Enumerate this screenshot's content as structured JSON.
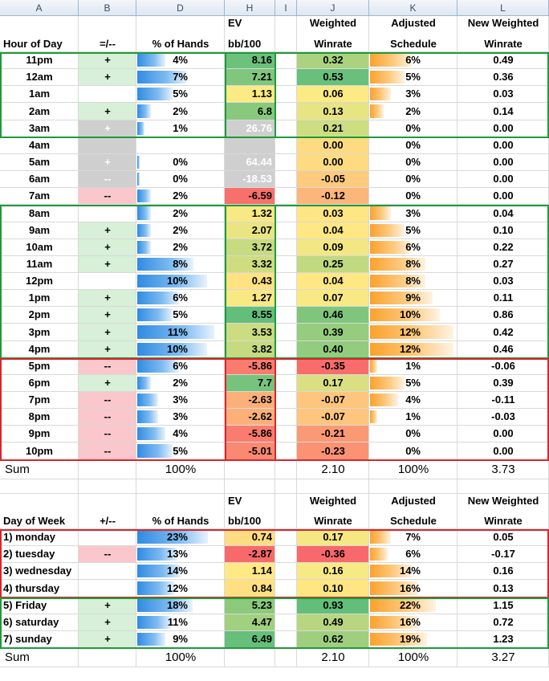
{
  "colors": {
    "plus_fill": "#d7f0d7",
    "minus_fill": "#f9c7cc",
    "gray_fill": "#cfcfcf",
    "bar_blue": "#2f8be2",
    "bar_orange": "#fbaa3c",
    "green_frame": "#1e9a3a",
    "red_frame": "#d9262b"
  },
  "column_letters": [
    "A",
    "B",
    "D",
    "H",
    "I",
    "J",
    "K",
    "L"
  ],
  "hour_header": {
    "a": "Hour of Day",
    "b": "=/--",
    "d": "% of Hands",
    "h1": "EV",
    "h2": "bb/100",
    "j1": "Weighted",
    "j2": "Winrate",
    "k1": "Adjusted",
    "k2": "Schedule",
    "l1": "New Weighted",
    "l2": "Winrate"
  },
  "hour_rows": [
    {
      "a": "11pm",
      "b": "+",
      "bfill": "plus",
      "d": "4%",
      "dv": 4,
      "h": "8.16",
      "hv": 8.16,
      "hgray": false,
      "j": "0.32",
      "jv": 0.32,
      "k": "6%",
      "kv": 6,
      "l": "0.49"
    },
    {
      "a": "12am",
      "b": "+",
      "bfill": "plus",
      "d": "7%",
      "dv": 7,
      "h": "7.21",
      "hv": 7.21,
      "hgray": false,
      "j": "0.53",
      "jv": 0.53,
      "k": "5%",
      "kv": 5,
      "l": "0.36"
    },
    {
      "a": "1am",
      "b": "",
      "bfill": "none",
      "d": "5%",
      "dv": 5,
      "h": "1.13",
      "hv": 1.13,
      "hgray": false,
      "j": "0.06",
      "jv": 0.06,
      "k": "3%",
      "kv": 3,
      "l": "0.03"
    },
    {
      "a": "2am",
      "b": "+",
      "bfill": "plus",
      "d": "2%",
      "dv": 2,
      "h": "6.8",
      "hv": 6.8,
      "hgray": false,
      "j": "0.13",
      "jv": 0.13,
      "k": "2%",
      "kv": 2,
      "l": "0.14"
    },
    {
      "a": "3am",
      "b": "+",
      "bfill": "gray",
      "d": "1%",
      "dv": 1,
      "h": "26.76",
      "hv": 26.76,
      "hgray": true,
      "j": "0.21",
      "jv": 0.21,
      "k": "0%",
      "kv": 0,
      "l": "0.00"
    },
    {
      "a": "4am",
      "b": "",
      "bfill": "gray",
      "d": "",
      "dv": 0,
      "h": "",
      "hv": 0,
      "hgray": true,
      "j": "0.00",
      "jv": 0,
      "k": "0%",
      "kv": 0,
      "l": "0.00"
    },
    {
      "a": "5am",
      "b": "+",
      "bfill": "gray",
      "d": "0%",
      "dv": 0.4,
      "h": "64.44",
      "hv": 64.44,
      "hgray": true,
      "j": "0.00",
      "jv": 0,
      "k": "0%",
      "kv": 0,
      "l": "0.00"
    },
    {
      "a": "6am",
      "b": "--",
      "bfill": "gray",
      "d": "0%",
      "dv": 0.4,
      "h": "-18.53",
      "hv": -18.53,
      "hgray": true,
      "j": "-0.05",
      "jv": -0.05,
      "k": "0%",
      "kv": 0,
      "l": "0.00"
    },
    {
      "a": "7am",
      "b": "--",
      "bfill": "minus",
      "d": "2%",
      "dv": 2,
      "h": "-6.59",
      "hv": -6.59,
      "hgray": false,
      "j": "-0.12",
      "jv": -0.12,
      "k": "0%",
      "kv": 0,
      "l": "0.00"
    },
    {
      "a": "8am",
      "b": "",
      "bfill": "none",
      "d": "2%",
      "dv": 2,
      "h": "1.32",
      "hv": 1.32,
      "hgray": false,
      "j": "0.03",
      "jv": 0.03,
      "k": "3%",
      "kv": 3,
      "l": "0.04"
    },
    {
      "a": "9am",
      "b": "+",
      "bfill": "plus",
      "d": "2%",
      "dv": 2,
      "h": "2.07",
      "hv": 2.07,
      "hgray": false,
      "j": "0.04",
      "jv": 0.04,
      "k": "5%",
      "kv": 5,
      "l": "0.10"
    },
    {
      "a": "10am",
      "b": "+",
      "bfill": "plus",
      "d": "2%",
      "dv": 2,
      "h": "3.72",
      "hv": 3.72,
      "hgray": false,
      "j": "0.09",
      "jv": 0.09,
      "k": "6%",
      "kv": 6,
      "l": "0.22"
    },
    {
      "a": "11am",
      "b": "+",
      "bfill": "plus",
      "d": "8%",
      "dv": 8,
      "h": "3.32",
      "hv": 3.32,
      "hgray": false,
      "j": "0.25",
      "jv": 0.25,
      "k": "8%",
      "kv": 8,
      "l": "0.27"
    },
    {
      "a": "12pm",
      "b": "",
      "bfill": "none",
      "d": "10%",
      "dv": 10,
      "h": "0.43",
      "hv": 0.43,
      "hgray": false,
      "j": "0.04",
      "jv": 0.04,
      "k": "8%",
      "kv": 8,
      "l": "0.03"
    },
    {
      "a": "1pm",
      "b": "+",
      "bfill": "plus",
      "d": "6%",
      "dv": 6,
      "h": "1.27",
      "hv": 1.27,
      "hgray": false,
      "j": "0.07",
      "jv": 0.07,
      "k": "9%",
      "kv": 9,
      "l": "0.11"
    },
    {
      "a": "2pm",
      "b": "+",
      "bfill": "plus",
      "d": "5%",
      "dv": 5,
      "h": "8.55",
      "hv": 8.55,
      "hgray": false,
      "j": "0.46",
      "jv": 0.46,
      "k": "10%",
      "kv": 10,
      "l": "0.86"
    },
    {
      "a": "3pm",
      "b": "+",
      "bfill": "plus",
      "d": "11%",
      "dv": 11,
      "h": "3.53",
      "hv": 3.53,
      "hgray": false,
      "j": "0.39",
      "jv": 0.39,
      "k": "12%",
      "kv": 12,
      "l": "0.42"
    },
    {
      "a": "4pm",
      "b": "+",
      "bfill": "plus",
      "d": "10%",
      "dv": 10,
      "h": "3.82",
      "hv": 3.82,
      "hgray": false,
      "j": "0.40",
      "jv": 0.4,
      "k": "12%",
      "kv": 12,
      "l": "0.46"
    },
    {
      "a": "5pm",
      "b": "--",
      "bfill": "minus",
      "d": "6%",
      "dv": 6,
      "h": "-5.86",
      "hv": -5.86,
      "hgray": false,
      "j": "-0.35",
      "jv": -0.35,
      "k": "1%",
      "kv": 1,
      "l": "-0.06"
    },
    {
      "a": "6pm",
      "b": "+",
      "bfill": "plus",
      "d": "2%",
      "dv": 2,
      "h": "7.7",
      "hv": 7.7,
      "hgray": false,
      "j": "0.17",
      "jv": 0.17,
      "k": "5%",
      "kv": 5,
      "l": "0.39"
    },
    {
      "a": "7pm",
      "b": "--",
      "bfill": "minus",
      "d": "3%",
      "dv": 3,
      "h": "-2.63",
      "hv": -2.63,
      "hgray": false,
      "j": "-0.07",
      "jv": -0.07,
      "k": "4%",
      "kv": 4,
      "l": "-0.11"
    },
    {
      "a": "8pm",
      "b": "--",
      "bfill": "minus",
      "d": "3%",
      "dv": 3,
      "h": "-2.62",
      "hv": -2.62,
      "hgray": false,
      "j": "-0.07",
      "jv": -0.07,
      "k": "1%",
      "kv": 1,
      "l": "-0.03"
    },
    {
      "a": "9pm",
      "b": "--",
      "bfill": "minus",
      "d": "4%",
      "dv": 4,
      "h": "-5.86",
      "hv": -5.86,
      "hgray": false,
      "j": "-0.21",
      "jv": -0.21,
      "k": "0%",
      "kv": 0,
      "l": "0.00"
    },
    {
      "a": "10pm",
      "b": "--",
      "bfill": "minus",
      "d": "5%",
      "dv": 5,
      "h": "-5.01",
      "hv": -5.01,
      "hgray": false,
      "j": "-0.23",
      "jv": -0.23,
      "k": "0%",
      "kv": 0,
      "l": "0.00"
    }
  ],
  "hour_sum": {
    "a": "Sum",
    "d": "100%",
    "j": "2.10",
    "k": "100%",
    "l": "3.73"
  },
  "day_header": {
    "a": "Day of Week",
    "b": "+/--",
    "d": "% of Hands",
    "h1": "EV",
    "h2": "bb/100",
    "j1": "Weighted",
    "j2": "Winrate",
    "k1": "Adjusted",
    "k2": "Schedule",
    "l1": "New Weighted",
    "l2": "Winrate"
  },
  "day_rows": [
    {
      "a": "1) monday",
      "b": "",
      "bfill": "none",
      "d": "23%",
      "dv": 23,
      "h": "0.74",
      "hv": 0.74,
      "j": "0.17",
      "jv": 0.17,
      "k": "7%",
      "kv": 7,
      "l": "0.05"
    },
    {
      "a": "2) tuesday",
      "b": "--",
      "bfill": "minus",
      "d": "13%",
      "dv": 13,
      "h": "-2.87",
      "hv": -2.87,
      "j": "-0.36",
      "jv": -0.36,
      "k": "6%",
      "kv": 6,
      "l": "-0.17"
    },
    {
      "a": "3) wednesday",
      "b": "",
      "bfill": "none",
      "d": "14%",
      "dv": 14,
      "h": "1.14",
      "hv": 1.14,
      "j": "0.16",
      "jv": 0.16,
      "k": "14%",
      "kv": 14,
      "l": "0.16"
    },
    {
      "a": "4) thursday",
      "b": "",
      "bfill": "none",
      "d": "12%",
      "dv": 12,
      "h": "0.84",
      "hv": 0.84,
      "j": "0.10",
      "jv": 0.1,
      "k": "16%",
      "kv": 16,
      "l": "0.13"
    },
    {
      "a": "5) Friday",
      "b": "+",
      "bfill": "plus",
      "d": "18%",
      "dv": 18,
      "h": "5.23",
      "hv": 5.23,
      "j": "0.93",
      "jv": 0.93,
      "k": "22%",
      "kv": 22,
      "l": "1.15"
    },
    {
      "a": "6) saturday",
      "b": "+",
      "bfill": "plus",
      "d": "11%",
      "dv": 11,
      "h": "4.47",
      "hv": 4.47,
      "j": "0.49",
      "jv": 0.49,
      "k": "16%",
      "kv": 16,
      "l": "0.72"
    },
    {
      "a": "7) sunday",
      "b": "+",
      "bfill": "plus",
      "d": "9%",
      "dv": 9,
      "h": "6.49",
      "hv": 6.49,
      "j": "0.62",
      "jv": 0.62,
      "k": "19%",
      "kv": 19,
      "l": "1.23"
    }
  ],
  "day_sum": {
    "a": "Sum",
    "d": "100%",
    "j": "2.10",
    "k": "100%",
    "l": "3.27"
  }
}
